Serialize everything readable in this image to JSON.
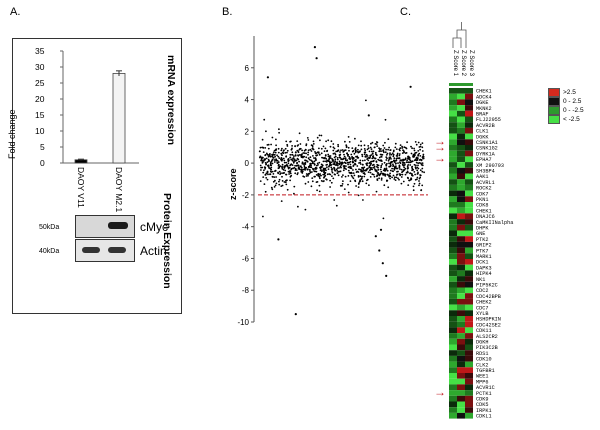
{
  "panels": {
    "a": {
      "letter": "A.",
      "mrna_title": "mRNA expression",
      "protein_title": "Protein Expression",
      "y_label": "Fold change",
      "y_ticks": [
        "35",
        "30",
        "25",
        "20",
        "15",
        "10",
        "5",
        "0"
      ],
      "blot_labels": {
        "cmyc": "cMyc",
        "actin": "Actin"
      },
      "kda_labels": {
        "k50": "50kDa",
        "k40": "40kDa"
      }
    },
    "b": {
      "letter": "B."
    },
    "c": {
      "letter": "C."
    }
  },
  "chart_data": [
    {
      "type": "bar",
      "categories": [
        "DAOY V11",
        "DAOY M2.1"
      ],
      "values": [
        1,
        28
      ],
      "errors": [
        0.2,
        0.8
      ],
      "ylabel": "Fold change",
      "ylim": [
        0,
        35
      ],
      "colors": [
        "#000000",
        "#f4f4f4"
      ]
    },
    {
      "type": "scatter",
      "ylabel": "z-score",
      "ylim": [
        -10,
        8
      ],
      "yticks": [
        6,
        4,
        2,
        0,
        -2,
        -4,
        -6,
        -8,
        -10
      ],
      "threshold": -2,
      "threshold_color": "#c0161c",
      "n_points": 1300
    },
    {
      "type": "heatmap",
      "columns": [
        "Z Score 1",
        "Z Score 2",
        "Z Score 3"
      ],
      "rows": [
        "CHEK1",
        "ADCK4",
        "DGKE",
        "MKNK2",
        "BRAF",
        "FLJ22955",
        "ACVR2B",
        "CLK1",
        "DGKK",
        "CSNK1A1",
        "CSNK1G2",
        "DYRK1A",
        "EPHA7",
        "XM 290793",
        "SH3BP4",
        "AAK1",
        "ACVRL1",
        "ROCK2",
        "CDK7",
        "PKN1",
        "CDK8",
        "CHEK1",
        "DNAJC6",
        "CaMKIINalpha",
        "DHPK",
        "GNE",
        "PTK2",
        "GRIP2",
        "PTK7",
        "MARK1",
        "DCK1",
        "DAPK3",
        "HIPK4",
        "NK1",
        "PIP5K2C",
        "CDC2",
        "CDC42BPB",
        "CHEK2",
        "CDC7",
        "XYLB",
        "HSHDPKIN",
        "CDC42SE2",
        "CDK11",
        "ALS2CR2",
        "DGKH",
        "PIK3C2B",
        "RDS1",
        "CDK10",
        "CLK2",
        "TGFBR1",
        "WEE1",
        "MPP6",
        "ACVR1C",
        "PCTK1",
        "CDK9",
        "CDK5",
        "IRPK1",
        "CDKL1"
      ],
      "legend": [
        {
          "label": ">2.5",
          "color": "#d42a1e"
        },
        {
          "label": "0 - 2.5",
          "color": "#111111"
        },
        {
          "label": "0 - -2.5",
          "color": "#2e9a2e"
        },
        {
          "label": "< -2.5",
          "color": "#46e046"
        }
      ]
    }
  ]
}
